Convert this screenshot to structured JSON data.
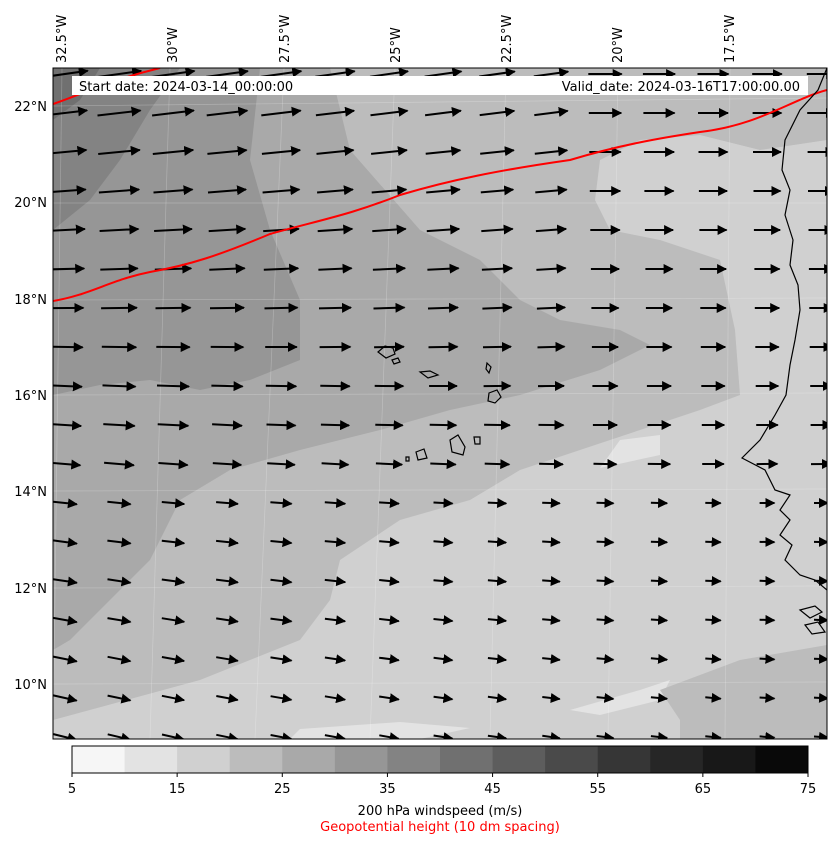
{
  "map": {
    "start_date": "Start date: 2024-03-14_00:00:00",
    "valid_date": "Valid_date: 2024-03-16T17:00:00.00",
    "lon_labels": [
      "32.5°W",
      "30°W",
      "27.5°W",
      "25°W",
      "22.5°W",
      "20°W",
      "17.5°W"
    ],
    "lat_labels": [
      "22°N",
      "20°N",
      "18°N",
      "16°N",
      "14°N",
      "12°N",
      "10°N"
    ],
    "contour_color": "#ff0000",
    "coastline_color": "#000000"
  },
  "colorbar": {
    "ticks": [
      "5",
      "15",
      "25",
      "35",
      "45",
      "55",
      "65",
      "75"
    ],
    "colors": [
      "#f6f6f6",
      "#e3e3e3",
      "#d0d0d0",
      "#bcbcbc",
      "#a9a9a9",
      "#969696",
      "#838383",
      "#707070",
      "#5d5d5d",
      "#4a4a4a",
      "#363636",
      "#262626",
      "#181818",
      "#090909"
    ],
    "label": "200 hPa windspeed (m/s)",
    "sublabel": "Geopotential height (10 dm spacing)",
    "sublabel_color": "#ff0000"
  }
}
